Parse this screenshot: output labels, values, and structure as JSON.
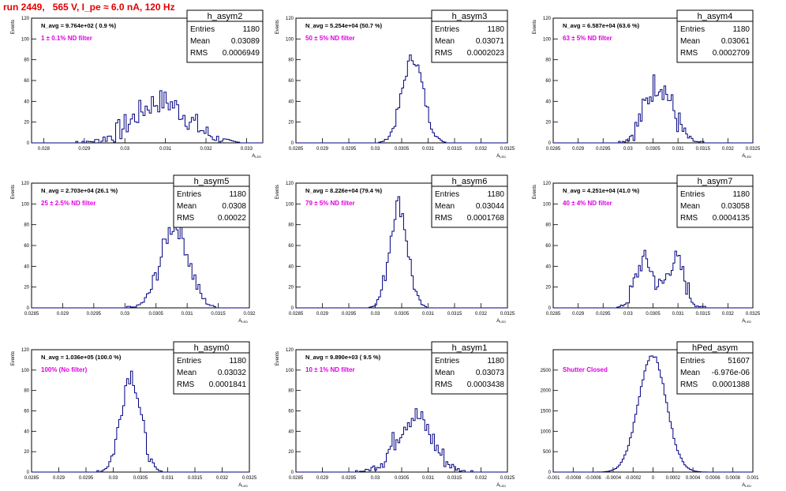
{
  "page_title": "run 2449,   565 V, I_pe ≈ 6.0 nA, 120 Hz",
  "colors": {
    "histogram": "#000080",
    "title": "#e00000",
    "annotation": "#e000e0",
    "axes": "#000000"
  },
  "stats_labels": {
    "entries": "Entries",
    "mean": "Mean",
    "rms": "RMS"
  },
  "chart_data": [
    {
      "type": "histogram",
      "name": "h_asym2",
      "avg_label": "N_avg = 9.764e+02 ( 0.9 %)",
      "filter_label": "1 ± 0.1% ND filter",
      "stats": {
        "entries": "1180",
        "mean": "0.03089",
        "rms": "0.0006949"
      },
      "xlabel": "A_LED",
      "ylabel": "Events",
      "xlim": [
        0.0277,
        0.0334
      ],
      "ylim": [
        0,
        120
      ],
      "xticks": [
        "0.028",
        "0.029",
        "0.03",
        "0.031",
        "0.032",
        "0.033"
      ],
      "yticks": [
        "0",
        "20",
        "40",
        "60",
        "80",
        "100",
        "120"
      ],
      "curve": {
        "peaks": [
          {
            "mean": 0.03089,
            "sigma": 0.00066,
            "height": 40
          }
        ],
        "noise": 12
      }
    },
    {
      "type": "histogram",
      "name": "h_asym3",
      "avg_label": "N_avg = 5.254e+04 (50.7 %)",
      "filter_label": "50 ± 5% ND filter",
      "stats": {
        "entries": "1180",
        "mean": "0.03071",
        "rms": "0.0002023"
      },
      "xlabel": "A_LED",
      "ylabel": "Events",
      "xlim": [
        0.0285,
        0.0325
      ],
      "ylim": [
        0,
        120
      ],
      "xticks": [
        "0.0285",
        "0.029",
        "0.0295",
        "0.03",
        "0.0305",
        "0.031",
        "0.0315",
        "0.032",
        "0.0325"
      ],
      "yticks": [
        "0",
        "20",
        "40",
        "60",
        "80",
        "100",
        "120"
      ],
      "curve": {
        "peaks": [
          {
            "mean": 0.03071,
            "sigma": 0.0002,
            "height": 82
          }
        ],
        "noise": 6
      }
    },
    {
      "type": "histogram",
      "name": "h_asym4",
      "avg_label": "N_avg = 6.587e+04 (63.6 %)",
      "filter_label": "63 ± 5% ND filter",
      "stats": {
        "entries": "1180",
        "mean": "0.03061",
        "rms": "0.0002709"
      },
      "xlabel": "A_LED",
      "ylabel": "Events",
      "xlim": [
        0.0285,
        0.0325
      ],
      "ylim": [
        0,
        120
      ],
      "xticks": [
        "0.0285",
        "0.029",
        "0.0295",
        "0.03",
        "0.0305",
        "0.031",
        "0.0315",
        "0.032",
        "0.0325"
      ],
      "yticks": [
        "0",
        "20",
        "40",
        "60",
        "80",
        "100",
        "120"
      ],
      "curve": {
        "peaks": [
          {
            "mean": 0.03061,
            "sigma": 0.00027,
            "height": 58
          }
        ],
        "noise": 14
      }
    },
    {
      "type": "histogram",
      "name": "h_asym5",
      "avg_label": "N_avg = 2.703e+04 (26.1 %)",
      "filter_label": "25 ± 2.5% ND filter",
      "stats": {
        "entries": "1180",
        "mean": "0.0308",
        "rms": "0.00022"
      },
      "xlabel": "A_LED",
      "ylabel": "Events",
      "xlim": [
        0.0285,
        0.032
      ],
      "ylim": [
        0,
        120
      ],
      "xticks": [
        "0.0285",
        "0.029",
        "0.0295",
        "0.03",
        "0.0305",
        "0.031",
        "0.0315",
        "0.032"
      ],
      "yticks": [
        "0",
        "20",
        "40",
        "60",
        "80",
        "100",
        "120"
      ],
      "curve": {
        "peaks": [
          {
            "mean": 0.0308,
            "sigma": 0.00022,
            "height": 80
          }
        ],
        "noise": 10
      }
    },
    {
      "type": "histogram",
      "name": "h_asym6",
      "avg_label": "N_avg = 8.226e+04 (79.4 %)",
      "filter_label": "79 ± 5% ND filter",
      "stats": {
        "entries": "1180",
        "mean": "0.03044",
        "rms": "0.0001768"
      },
      "xlabel": "A_LED",
      "ylabel": "Events",
      "xlim": [
        0.0285,
        0.0325
      ],
      "ylim": [
        0,
        120
      ],
      "xticks": [
        "0.0285",
        "0.029",
        "0.0295",
        "0.03",
        "0.0305",
        "0.031",
        "0.0315",
        "0.032",
        "0.0325"
      ],
      "yticks": [
        "0",
        "20",
        "40",
        "60",
        "80",
        "100",
        "120"
      ],
      "curve": {
        "peaks": [
          {
            "mean": 0.03044,
            "sigma": 0.00017,
            "height": 100
          }
        ],
        "noise": 10
      }
    },
    {
      "type": "histogram",
      "name": "h_asym7",
      "avg_label": "N_avg = 4.251e+04 (41.0 %)",
      "filter_label": "40 ± 4% ND filter",
      "stats": {
        "entries": "1180",
        "mean": "0.03058",
        "rms": "0.0004135"
      },
      "xlabel": "A_LED",
      "ylabel": "Events",
      "xlim": [
        0.0285,
        0.0325
      ],
      "ylim": [
        0,
        120
      ],
      "xticks": [
        "0.0285",
        "0.029",
        "0.0295",
        "0.03",
        "0.0305",
        "0.031",
        "0.0315",
        "0.032",
        "0.0325"
      ],
      "yticks": [
        "0",
        "20",
        "40",
        "60",
        "80",
        "100",
        "120"
      ],
      "curve": {
        "peaks": [
          {
            "mean": 0.03033,
            "sigma": 0.00018,
            "height": 46
          },
          {
            "mean": 0.03095,
            "sigma": 0.00018,
            "height": 46
          }
        ],
        "noise": 10
      }
    },
    {
      "type": "histogram",
      "name": "h_asym0",
      "avg_label": "N_avg = 1.036e+05 (100.0 %)",
      "filter_label": "100% (No filter)",
      "stats": {
        "entries": "1180",
        "mean": "0.03032",
        "rms": "0.0001841"
      },
      "xlabel": "A_LED",
      "ylabel": "Events",
      "xlim": [
        0.0285,
        0.0325
      ],
      "ylim": [
        0,
        120
      ],
      "xticks": [
        "0.0285",
        "0.029",
        "0.0295",
        "0.03",
        "0.0305",
        "0.031",
        "0.0315",
        "0.032",
        "0.0325"
      ],
      "yticks": [
        "0",
        "20",
        "40",
        "60",
        "80",
        "100",
        "120"
      ],
      "curve": {
        "peaks": [
          {
            "mean": 0.03032,
            "sigma": 0.00018,
            "height": 97
          }
        ],
        "noise": 10
      }
    },
    {
      "type": "histogram",
      "name": "h_asym1",
      "avg_label": "N_avg = 9.890e+03 ( 9.5 %)",
      "filter_label": "10 ± 1% ND filter",
      "stats": {
        "entries": "1180",
        "mean": "0.03073",
        "rms": "0.0003438"
      },
      "xlabel": "A_LED",
      "ylabel": "Events",
      "xlim": [
        0.0285,
        0.0325
      ],
      "ylim": [
        0,
        120
      ],
      "xticks": [
        "0.0285",
        "0.029",
        "0.0295",
        "0.03",
        "0.0305",
        "0.031",
        "0.0315",
        "0.032",
        "0.0325"
      ],
      "yticks": [
        "0",
        "20",
        "40",
        "60",
        "80",
        "100",
        "120"
      ],
      "curve": {
        "peaks": [
          {
            "mean": 0.03073,
            "sigma": 0.00034,
            "height": 55
          }
        ],
        "noise": 12
      }
    },
    {
      "type": "histogram",
      "name": "hPed_asym",
      "avg_label": "",
      "filter_label": "Shutter Closed",
      "stats": {
        "entries": "51607",
        "mean": "-6.976e-06",
        "rms": "0.0001388"
      },
      "xlabel": "A_LED",
      "ylabel": "",
      "xlim": [
        -0.001,
        0.001
      ],
      "ylim": [
        0,
        3000
      ],
      "xticks": [
        "-0.001",
        "-0.0008",
        "-0.0006",
        "-0.0004",
        "-0.0002",
        "0",
        "0.0002",
        "0.0004",
        "0.0006",
        "0.0008",
        "0.001"
      ],
      "yticks": [
        "0",
        "500",
        "1000",
        "1500",
        "2000",
        "2500"
      ],
      "curve": {
        "peaks": [
          {
            "mean": -7e-06,
            "sigma": 0.000139,
            "height": 2870
          }
        ],
        "noise": 40
      }
    }
  ]
}
